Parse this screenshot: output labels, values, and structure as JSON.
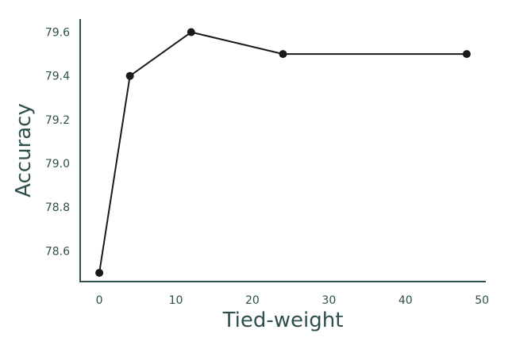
{
  "chart_data": {
    "type": "line",
    "title": "",
    "xlabel": "Tied-weight",
    "ylabel": "Accuracy",
    "x": [
      0,
      4,
      12,
      24,
      48
    ],
    "series": [
      {
        "values": [
          78.5,
          79.4,
          79.6,
          79.5,
          79.5
        ]
      }
    ],
    "xlim": [
      -2.5,
      50.5
    ],
    "ylim": [
      78.46,
      79.66
    ],
    "xticks": [
      0,
      10,
      20,
      30,
      40,
      50
    ],
    "xtick_labels": [
      "0",
      "10",
      "20",
      "30",
      "40",
      "50"
    ],
    "yticks": [
      78.6,
      78.8,
      79.0,
      79.2,
      79.4,
      79.6
    ],
    "ytick_labels": [
      "78.6",
      "78.8",
      "79.0",
      "79.2",
      "79.4",
      "79.6"
    ],
    "grid": false,
    "legend": "none",
    "colors": {
      "axis": "#2f4f4f",
      "line": "#1a1a1a",
      "marker": "#1a1a1a"
    }
  }
}
